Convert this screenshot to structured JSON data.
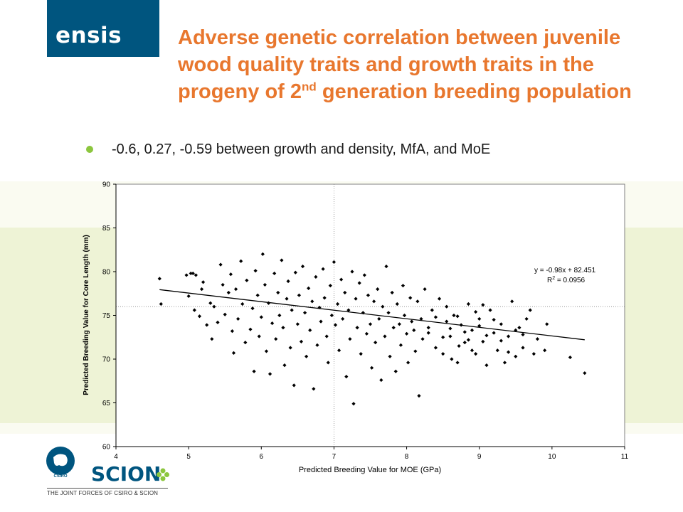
{
  "brand": {
    "logo_text": "ensis",
    "accent": "#00557f",
    "title_color": "#e8772e",
    "bullet_color": "#8cc63e"
  },
  "slide": {
    "title_main": "Adverse genetic correlation between juvenile wood quality traits and growth traits in the progeny of 2",
    "title_sup": "nd",
    "title_tail": " generation breeding population",
    "bullet": "-0.6, 0.27, -0.59 between growth and density, MfA, and MoE"
  },
  "chart_data": {
    "type": "scatter",
    "xlabel": "Predicted Breeding Value for MOE (GPa)",
    "ylabel": "Predicted Breeding Value for Core Length (mm)",
    "xlim": [
      4,
      11
    ],
    "ylim": [
      60,
      90
    ],
    "x_ticks": [
      4,
      5,
      6,
      7,
      8,
      9,
      10,
      11
    ],
    "y_ticks": [
      60,
      65,
      70,
      75,
      80,
      85,
      90
    ],
    "grid": false,
    "reference_lines": {
      "x": 7,
      "y": 76
    },
    "trendline": {
      "slope": -0.98,
      "intercept": 82.451,
      "x_range": [
        4.6,
        10.45
      ],
      "equation": "y = -0.98x + 82.451",
      "r2_prefix": "R",
      "r2_sup": "2",
      "r2_value": " = 0.0956"
    },
    "series": [
      {
        "marker": "diamond",
        "color": "#000000",
        "points": [
          [
            4.6,
            79.2
          ],
          [
            4.62,
            76.3
          ],
          [
            4.97,
            79.6
          ],
          [
            5.0,
            77.2
          ],
          [
            5.03,
            79.8
          ],
          [
            5.06,
            79.8
          ],
          [
            5.1,
            79.6
          ],
          [
            5.2,
            78.8
          ],
          [
            5.08,
            75.6
          ],
          [
            5.15,
            74.9
          ],
          [
            5.18,
            78.0
          ],
          [
            5.25,
            73.9
          ],
          [
            5.3,
            76.4
          ],
          [
            5.32,
            72.3
          ],
          [
            5.35,
            76.0
          ],
          [
            5.4,
            74.2
          ],
          [
            5.44,
            80.8
          ],
          [
            5.47,
            78.5
          ],
          [
            5.5,
            75.1
          ],
          [
            5.55,
            77.6
          ],
          [
            5.58,
            79.7
          ],
          [
            5.6,
            73.2
          ],
          [
            5.62,
            70.7
          ],
          [
            5.65,
            78.0
          ],
          [
            5.68,
            74.6
          ],
          [
            5.72,
            81.2
          ],
          [
            5.74,
            76.3
          ],
          [
            5.78,
            71.9
          ],
          [
            5.8,
            79.0
          ],
          [
            5.85,
            73.4
          ],
          [
            5.88,
            75.8
          ],
          [
            5.9,
            68.6
          ],
          [
            5.92,
            80.1
          ],
          [
            5.95,
            77.3
          ],
          [
            5.97,
            72.6
          ],
          [
            6.0,
            74.8
          ],
          [
            6.02,
            82.0
          ],
          [
            6.05,
            78.5
          ],
          [
            6.07,
            70.9
          ],
          [
            6.1,
            76.4
          ],
          [
            6.12,
            68.3
          ],
          [
            6.15,
            74.1
          ],
          [
            6.18,
            79.8
          ],
          [
            6.2,
            72.3
          ],
          [
            6.23,
            77.6
          ],
          [
            6.25,
            75.0
          ],
          [
            6.28,
            81.3
          ],
          [
            6.3,
            73.6
          ],
          [
            6.32,
            69.3
          ],
          [
            6.35,
            76.9
          ],
          [
            6.37,
            78.9
          ],
          [
            6.4,
            71.3
          ],
          [
            6.42,
            75.6
          ],
          [
            6.45,
            67.0
          ],
          [
            6.47,
            79.9
          ],
          [
            6.5,
            74.0
          ],
          [
            6.52,
            77.3
          ],
          [
            6.55,
            72.0
          ],
          [
            6.57,
            80.6
          ],
          [
            6.6,
            75.3
          ],
          [
            6.62,
            70.3
          ],
          [
            6.65,
            78.1
          ],
          [
            6.67,
            73.3
          ],
          [
            6.7,
            76.6
          ],
          [
            6.72,
            66.6
          ],
          [
            6.75,
            79.4
          ],
          [
            6.77,
            71.6
          ],
          [
            6.8,
            75.9
          ],
          [
            6.82,
            74.3
          ],
          [
            6.85,
            80.3
          ],
          [
            6.87,
            77.0
          ],
          [
            6.9,
            72.6
          ],
          [
            6.92,
            69.6
          ],
          [
            6.95,
            78.4
          ],
          [
            6.97,
            75.0
          ],
          [
            7.0,
            81.1
          ],
          [
            7.02,
            73.9
          ],
          [
            7.05,
            76.3
          ],
          [
            7.07,
            71.0
          ],
          [
            7.1,
            79.1
          ],
          [
            7.12,
            74.6
          ],
          [
            7.15,
            77.6
          ],
          [
            7.17,
            68.0
          ],
          [
            7.2,
            75.6
          ],
          [
            7.22,
            72.3
          ],
          [
            7.25,
            80.0
          ],
          [
            7.27,
            64.9
          ],
          [
            7.3,
            76.9
          ],
          [
            7.32,
            73.6
          ],
          [
            7.35,
            78.7
          ],
          [
            7.37,
            70.6
          ],
          [
            7.4,
            75.3
          ],
          [
            7.42,
            79.6
          ],
          [
            7.45,
            72.9
          ],
          [
            7.47,
            77.3
          ],
          [
            7.5,
            74.0
          ],
          [
            7.52,
            69.0
          ],
          [
            7.55,
            76.6
          ],
          [
            7.57,
            71.9
          ],
          [
            7.6,
            78.0
          ],
          [
            7.62,
            74.6
          ],
          [
            7.65,
            67.6
          ],
          [
            7.67,
            76.0
          ],
          [
            7.7,
            72.6
          ],
          [
            7.72,
            80.6
          ],
          [
            7.75,
            75.3
          ],
          [
            7.77,
            70.3
          ],
          [
            7.8,
            77.6
          ],
          [
            7.82,
            73.6
          ],
          [
            7.85,
            68.6
          ],
          [
            7.87,
            76.3
          ],
          [
            7.9,
            74.0
          ],
          [
            7.92,
            71.6
          ],
          [
            7.95,
            78.4
          ],
          [
            7.97,
            75.0
          ],
          [
            8.0,
            72.9
          ],
          [
            8.02,
            69.6
          ],
          [
            8.05,
            77.0
          ],
          [
            8.07,
            74.3
          ],
          [
            8.1,
            73.3
          ],
          [
            8.12,
            70.9
          ],
          [
            8.15,
            76.6
          ],
          [
            8.17,
            65.8
          ],
          [
            8.2,
            74.6
          ],
          [
            8.22,
            72.3
          ],
          [
            8.25,
            78.0
          ],
          [
            8.3,
            73.6
          ],
          [
            8.35,
            75.6
          ],
          [
            8.4,
            71.3
          ],
          [
            8.45,
            76.9
          ],
          [
            8.5,
            70.6
          ],
          [
            8.55,
            74.3
          ],
          [
            8.6,
            72.6
          ],
          [
            8.65,
            75.0
          ],
          [
            8.7,
            69.6
          ],
          [
            8.75,
            73.9
          ],
          [
            8.8,
            71.9
          ],
          [
            8.85,
            76.3
          ],
          [
            8.9,
            73.3
          ],
          [
            8.95,
            70.6
          ],
          [
            9.0,
            74.6
          ],
          [
            9.05,
            72.0
          ],
          [
            9.1,
            69.3
          ],
          [
            9.15,
            75.6
          ],
          [
            9.2,
            73.0
          ],
          [
            9.25,
            71.0
          ],
          [
            9.3,
            74.0
          ],
          [
            9.35,
            69.6
          ],
          [
            9.4,
            72.6
          ],
          [
            9.45,
            76.6
          ],
          [
            9.5,
            70.3
          ],
          [
            9.55,
            73.6
          ],
          [
            9.6,
            71.3
          ],
          [
            9.65,
            74.6
          ],
          [
            9.7,
            75.6
          ],
          [
            9.75,
            70.6
          ],
          [
            9.8,
            72.3
          ],
          [
            9.9,
            71.0
          ],
          [
            9.93,
            74.0
          ],
          [
            10.25,
            70.2
          ],
          [
            10.45,
            68.4
          ],
          [
            8.3,
            73.0
          ],
          [
            8.4,
            74.8
          ],
          [
            8.5,
            72.5
          ],
          [
            8.55,
            76.0
          ],
          [
            8.6,
            73.5
          ],
          [
            8.7,
            74.9
          ],
          [
            8.8,
            73.1
          ],
          [
            8.9,
            71.0
          ],
          [
            9.0,
            73.8
          ],
          [
            9.1,
            72.7
          ],
          [
            9.2,
            74.5
          ],
          [
            9.3,
            72.1
          ],
          [
            9.4,
            70.8
          ],
          [
            9.5,
            73.3
          ],
          [
            9.6,
            72.8
          ],
          [
            8.62,
            70.0
          ],
          [
            8.72,
            71.5
          ],
          [
            8.85,
            72.2
          ],
          [
            8.95,
            75.4
          ],
          [
            9.05,
            76.2
          ]
        ]
      }
    ]
  }
}
